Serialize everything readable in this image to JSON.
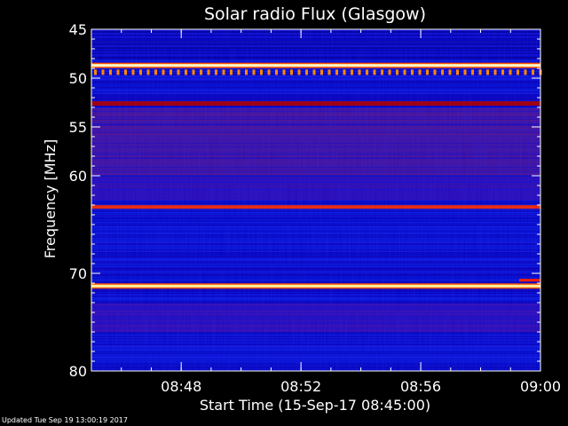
{
  "chart_data": {
    "type": "heatmap",
    "title": "Solar radio Flux (Glasgow)",
    "xlabel": "Start Time (15-Sep-17 08:45:00)",
    "ylabel": "Frequency [MHz]",
    "x_range_minutes": [
      0,
      15
    ],
    "x_ticks": [
      {
        "minute": 3,
        "label": "08:48"
      },
      {
        "minute": 7,
        "label": "08:52"
      },
      {
        "minute": 11,
        "label": "08:56"
      },
      {
        "minute": 15,
        "label": "09:00"
      }
    ],
    "y_range_mhz": [
      45,
      80
    ],
    "y_axis_inverted": true,
    "y_major_ticks": [
      {
        "value": 45,
        "label": "45"
      },
      {
        "value": 50,
        "label": "50"
      },
      {
        "value": 55,
        "label": "55"
      },
      {
        "value": 60,
        "label": "60"
      },
      {
        "value": 70,
        "label": "70"
      },
      {
        "value": 80,
        "label": "80"
      }
    ],
    "y_minor_tick_step_mhz": 1,
    "bright_bands_mhz": [
      {
        "frequency": 48.7,
        "level": "very-high",
        "color": "#ffffc8"
      },
      {
        "frequency": 49.4,
        "level": "high-pulsed",
        "color": "#ff8800"
      },
      {
        "frequency": 52.6,
        "level": "medium",
        "color": "#b00000"
      },
      {
        "frequency": 63.2,
        "level": "high",
        "color": "#ff3000"
      },
      {
        "frequency": 71.3,
        "level": "very-high",
        "color": "#fff0a0"
      },
      {
        "frequency": 70.7,
        "level": "medium",
        "color": "#ff2000"
      }
    ],
    "colors": {
      "background": "#0000c8",
      "low": "#000060",
      "mid": "#7a1a7a",
      "high": "#ff4000",
      "peak": "#ffffe0"
    }
  },
  "footer": {
    "updated": "Updated Tue Sep 19 13:00:19 2017"
  }
}
